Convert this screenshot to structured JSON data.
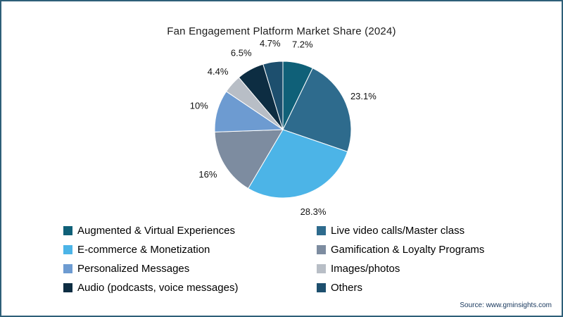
{
  "chart_data": {
    "type": "pie",
    "title": "Fan Engagement Platform Market Share (2024)",
    "direction": "clockwise",
    "start_angle": "12 o'clock",
    "legend_position": "bottom",
    "legend_columns": 2,
    "slices": [
      {
        "label": "Augmented & Virtual Experiences",
        "value": 7.2,
        "display": "7.2%",
        "color": "#0f6078"
      },
      {
        "label": "Live video calls/Master class",
        "value": 23.1,
        "display": "23.1%",
        "color": "#2e6b8d"
      },
      {
        "label": "E-commerce & Monetization",
        "value": 28.3,
        "display": "28.3%",
        "color": "#4cb4e7"
      },
      {
        "label": "Gamification & Loyalty Programs",
        "value": 16,
        "display": "16%",
        "color": "#7d8ca0"
      },
      {
        "label": "Personalized Messages",
        "value": 10,
        "display": "10%",
        "color": "#6d9bd1"
      },
      {
        "label": "Images/photos",
        "value": 4.4,
        "display": "4.4%",
        "color": "#b8bec6"
      },
      {
        "label": "Audio (podcasts, voice messages)",
        "value": 6.5,
        "display": "6.5%",
        "color": "#0d2d42"
      },
      {
        "label": "Others",
        "value": 4.7,
        "display": "4.7%",
        "color": "#1d4f6e"
      }
    ]
  },
  "source_text": "Source: www.gminsights.com",
  "colors": {
    "border": "#2e5f78",
    "background": "#ffffff",
    "title_text": "#1c1c1c",
    "label_text": "#111111",
    "source_text": "#16365c"
  }
}
